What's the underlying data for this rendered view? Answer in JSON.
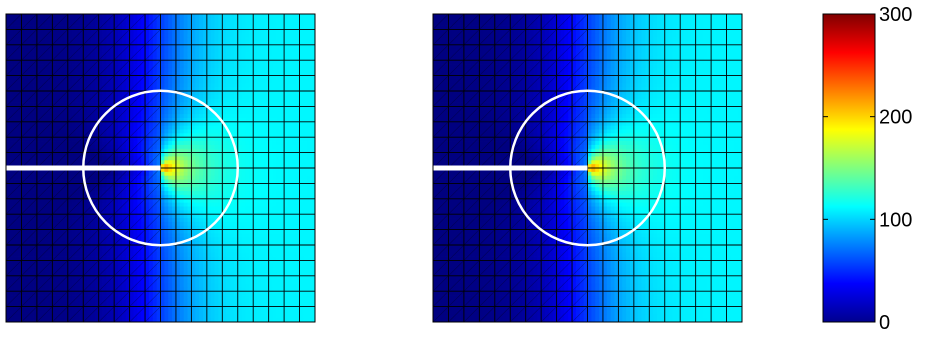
{
  "chart_data": [
    {
      "type": "heatmap",
      "grid": {
        "nx": 20,
        "ny": 20
      },
      "crack": {
        "tip_x": 0.5,
        "tip_y": 0.5
      },
      "circle": {
        "center_x": 0.5,
        "center_y": 0.5,
        "radius": 0.25
      },
      "field": {
        "far_left": 0,
        "far_right": 110,
        "tip_peak": 300
      },
      "colormap": "jet",
      "mesh_lines": "black",
      "overlay_color": "#ffffff"
    },
    {
      "type": "heatmap",
      "grid": {
        "nx": 20,
        "ny": 20
      },
      "crack": {
        "tip_x": 0.5,
        "tip_y": 0.5
      },
      "circle": {
        "center_x": 0.5,
        "center_y": 0.5,
        "radius": 0.25
      },
      "field": {
        "far_left": 0,
        "far_right": 110,
        "tip_peak": 300
      },
      "colormap": "jet",
      "mesh_lines": "black",
      "overlay_color": "#ffffff"
    }
  ],
  "colorbar": {
    "min": 0,
    "max": 300,
    "ticks": [
      0,
      100,
      200,
      300
    ],
    "tick_labels": [
      "0",
      "100",
      "200",
      "300"
    ]
  }
}
